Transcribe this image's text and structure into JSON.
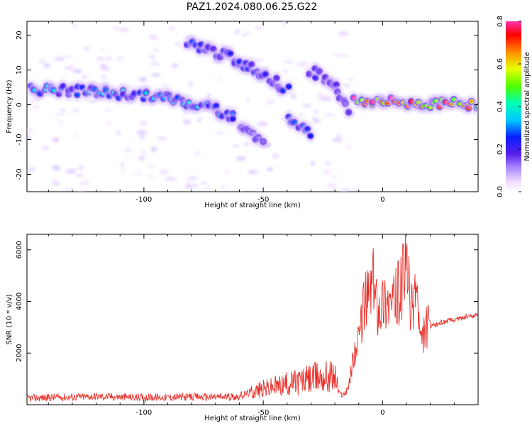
{
  "title": "PAZ1.2024.080.06.25.G22",
  "chart_data": [
    {
      "type": "heatmap",
      "xlabel": "Height of straight line (km)",
      "ylabel": "Frequency (Hz)",
      "xlim": [
        -149,
        40
      ],
      "ylim": [
        -25,
        24
      ],
      "xticks": [
        -100,
        -50,
        0
      ],
      "yticks": [
        -20,
        -10,
        0,
        10,
        20
      ],
      "colorbar": {
        "label": "Normalized spectral amplitude",
        "range": [
          0,
          0.8
        ],
        "ticks": [
          0.0,
          0.2,
          0.4,
          0.6,
          0.8
        ]
      },
      "ridges": [
        {
          "name": "",
          "points": [
            [
              -148,
              4.5
            ],
            [
              -120,
              3.8
            ],
            [
              -90,
              2
            ],
            [
              -70,
              -1
            ],
            [
              -62,
              -4
            ]
          ],
          "amplitude": 0.3
        },
        {
          "name": "",
          "points": [
            [
              -82,
              18
            ],
            [
              -65,
              14
            ],
            [
              -50,
              9
            ],
            [
              -40,
              4
            ]
          ],
          "amplitude": 0.25
        },
        {
          "name": "",
          "points": [
            [
              -60,
              -7
            ],
            [
              -50,
              -10
            ]
          ],
          "amplitude": 0.2
        },
        {
          "name": "",
          "points": [
            [
              -40,
              -4
            ],
            [
              -30,
              -8
            ]
          ],
          "amplitude": 0.3
        },
        {
          "name": "",
          "points": [
            [
              -30,
              10
            ],
            [
              -20,
              6
            ],
            [
              -14,
              -2
            ]
          ],
          "amplitude": 0.2
        },
        {
          "name": "",
          "points": [
            [
              -12,
              1.2
            ],
            [
              0,
              0.8
            ],
            [
              10,
              0.5
            ],
            [
              20,
              0.4
            ],
            [
              40,
              0.2
            ]
          ],
          "amplitude": 0.75
        }
      ]
    },
    {
      "type": "line",
      "xlabel": "Height of straight line (km)",
      "ylabel": "SNR (10 * v/v)",
      "xlim": [
        -149,
        40
      ],
      "ylim": [
        0,
        6600
      ],
      "xticks": [
        -100,
        -50,
        0
      ],
      "yticks": [
        2000,
        4000,
        6000
      ],
      "series": [
        {
          "name": "",
          "color": "#e8302a",
          "x": [
            -149,
            -140,
            -130,
            -120,
            -110,
            -100,
            -90,
            -80,
            -70,
            -60,
            -55,
            -50,
            -45,
            -40,
            -35,
            -30,
            -25,
            -20,
            -18,
            -16,
            -14,
            -12,
            -10,
            -8,
            -6,
            -4,
            -2,
            0,
            2,
            4,
            6,
            8,
            10,
            12,
            14,
            16,
            18,
            20,
            25,
            30,
            35,
            40
          ],
          "values": [
            250,
            280,
            300,
            320,
            300,
            280,
            290,
            300,
            300,
            320,
            500,
            600,
            700,
            800,
            900,
            1000,
            1100,
            1100,
            400,
            400,
            800,
            2000,
            2400,
            3900,
            4200,
            4800,
            3800,
            4000,
            4100,
            3800,
            4200,
            4600,
            5500,
            3500,
            4800,
            2200,
            3000,
            3000,
            3200,
            3300,
            3400,
            3480
          ]
        }
      ]
    }
  ]
}
